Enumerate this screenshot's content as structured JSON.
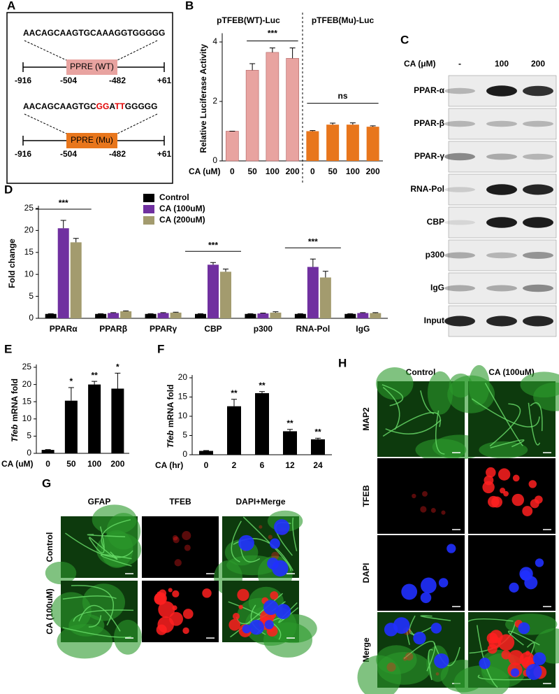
{
  "chart_data": [
    {
      "panel": "B",
      "type": "bar",
      "titles": [
        "pTFEB(WT)-Luc",
        "pTFEB(Mu)-Luc"
      ],
      "y_label": "Relative Luciferase Activity",
      "x_label": "CA (uM)",
      "categories": [
        "0",
        "50",
        "100",
        "200",
        "0",
        "50",
        "100",
        "200"
      ],
      "values": [
        1,
        3.05,
        3.65,
        3.45,
        1,
        1.22,
        1.22,
        1.15
      ],
      "errors": [
        0,
        0.22,
        0.15,
        0.35,
        0.02,
        0.05,
        0.06,
        0.03
      ],
      "colors": [
        "#e8a3a0",
        "#e8a3a0",
        "#e8a3a0",
        "#e8a3a0",
        "#e8761c",
        "#e8761c",
        "#e8761c",
        "#e8761c"
      ],
      "ylim": [
        0,
        4.2
      ],
      "yticks": [
        0,
        2,
        4
      ],
      "annotations": [
        "***",
        "ns"
      ]
    },
    {
      "panel": "D",
      "type": "grouped_bar",
      "y_label": "Fold change",
      "categories": [
        "PPARα",
        "PPARβ",
        "PPARγ",
        "CBP",
        "p300",
        "RNA-Pol",
        "IgG"
      ],
      "series": [
        {
          "name": "Control",
          "color": "#000000",
          "values": [
            1,
            1,
            1,
            1,
            1,
            1,
            1
          ],
          "errors": [
            0.05,
            0.05,
            0.05,
            0.05,
            0.05,
            0.05,
            0.05
          ]
        },
        {
          "name": "CA (100uM)",
          "color": "#7030a0",
          "values": [
            20.5,
            1.2,
            1.2,
            12.2,
            1.1,
            11.7,
            1.2
          ],
          "errors": [
            1.8,
            0.1,
            0.1,
            0.5,
            0.1,
            1.8,
            0.1
          ]
        },
        {
          "name": "CA (200uM)",
          "color": "#a39b6e",
          "values": [
            17.3,
            1.6,
            1.3,
            10.6,
            1.3,
            9.3,
            1.2
          ],
          "errors": [
            0.9,
            0.1,
            0.1,
            0.6,
            0.2,
            1.4,
            0.1
          ]
        }
      ],
      "ylim": [
        0,
        25
      ],
      "yticks": [
        0,
        5,
        10,
        15,
        20,
        25
      ],
      "annotations": [
        "***",
        "***",
        "***"
      ]
    },
    {
      "panel": "E",
      "type": "bar",
      "y_label": {
        "italic": "Tfeb",
        "rest": "mRNA fold"
      },
      "x_label": "CA (uM)",
      "categories": [
        "0",
        "50",
        "100",
        "200"
      ],
      "values": [
        1,
        15.3,
        20,
        18.8
      ],
      "errors": [
        0.1,
        3.8,
        0.9,
        4.5
      ],
      "color": "#000000",
      "ylim": [
        0,
        25
      ],
      "yticks": [
        0,
        5,
        10,
        15,
        20,
        25
      ],
      "annotations": [
        null,
        "*",
        "**",
        "*"
      ]
    },
    {
      "panel": "F",
      "type": "bar",
      "y_label": {
        "italic": "Tfeb",
        "rest": "mRNA fold"
      },
      "x_label": "CA (hr)",
      "categories": [
        "0",
        "2",
        "6",
        "12",
        "24"
      ],
      "values": [
        1,
        12.6,
        16,
        6.1,
        4
      ],
      "errors": [
        0.1,
        1.8,
        0.4,
        0.5,
        0.3
      ],
      "color": "#000000",
      "ylim": [
        0,
        20
      ],
      "yticks": [
        0,
        5,
        10,
        15,
        20
      ],
      "annotations": [
        null,
        "**",
        "**",
        "**",
        "**"
      ]
    }
  ],
  "diagram": {
    "panel": "A",
    "constructs": [
      {
        "sequence": [
          {
            "text": "AACAGCAAGTGCAAAGGTGGGGG",
            "color": "#000000"
          }
        ],
        "box": "PPRE (WT)",
        "box_color": "#e8a3a0",
        "positions": [
          "-916",
          "-504",
          "-482",
          "+61"
        ]
      },
      {
        "sequence": [
          {
            "text": "AACAGCAAGTGC",
            "color": "#000000"
          },
          {
            "text": "GG",
            "color": "#e00000"
          },
          {
            "text": "A",
            "color": "#000000"
          },
          {
            "text": "TT",
            "color": "#e00000"
          },
          {
            "text": "GGGGG",
            "color": "#000000"
          }
        ],
        "box": "PPRE (Mu)",
        "box_color": "#e8761c",
        "positions": [
          "-916",
          "-504",
          "-482",
          "+61"
        ]
      }
    ]
  },
  "blot": {
    "panel": "C",
    "header": "CA (μM)",
    "columns": [
      "-",
      "100",
      "200"
    ],
    "rows": [
      {
        "label": "PPAR-α",
        "bands": [
          0.25,
          0.95,
          0.85
        ]
      },
      {
        "label": "PPAR-β",
        "bands": [
          0.25,
          0.25,
          0.25
        ]
      },
      {
        "label": "PPAR-γ",
        "bands": [
          0.45,
          0.3,
          0.25
        ]
      },
      {
        "label": "RNA-Pol",
        "bands": [
          0.15,
          0.95,
          0.9
        ]
      },
      {
        "label": "CBP",
        "bands": [
          0.1,
          0.95,
          0.95
        ]
      },
      {
        "label": "p300",
        "bands": [
          0.3,
          0.25,
          0.4
        ]
      },
      {
        "label": "IgG",
        "bands": [
          0.3,
          0.3,
          0.45
        ]
      },
      {
        "label": "Input",
        "bands": [
          0.9,
          0.9,
          0.9
        ]
      }
    ]
  },
  "micrographs": [
    {
      "panel": "G",
      "columns": [
        "GFAP",
        "TFEB",
        "DAPI+Merge"
      ],
      "rows": [
        "Control",
        "CA (100uM)"
      ]
    },
    {
      "panel": "H",
      "columns": [
        "Control",
        "CA (100uM)"
      ],
      "rows": [
        "MAP2",
        "TFEB",
        "DAPI",
        "Merge"
      ]
    }
  ]
}
